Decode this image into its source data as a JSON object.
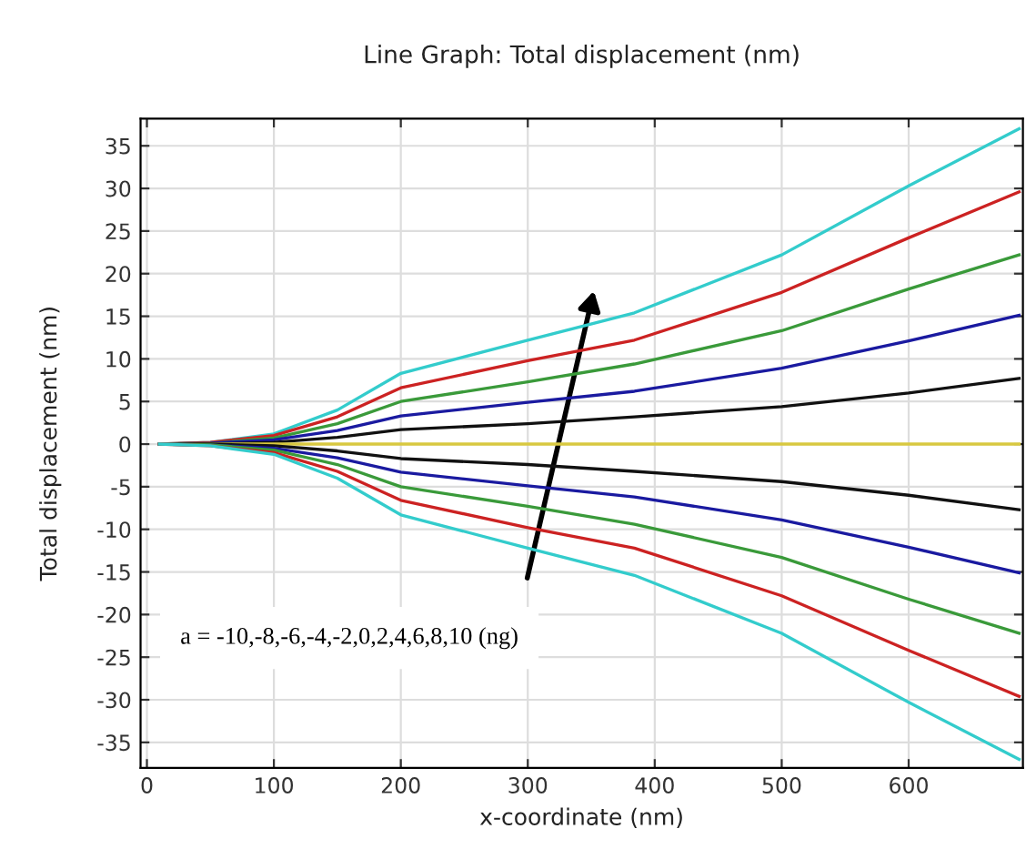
{
  "chart_data": {
    "type": "line",
    "title": "Line Graph: Total displacement (nm)",
    "xlabel": "x-coordinate (nm)",
    "ylabel": "Total displacement (nm)",
    "x": [
      10,
      50,
      100,
      150,
      200,
      300,
      384,
      500,
      600,
      687
    ],
    "series": [
      {
        "color": "#33cccc",
        "values": [
          0,
          0.2,
          1.2,
          4,
          8.3,
          12.2,
          15.4,
          22.2,
          30.3,
          37
        ]
      },
      {
        "color": "#cc2222",
        "values": [
          0,
          0.2,
          1,
          3.2,
          6.6,
          9.8,
          12.2,
          17.8,
          24.2,
          29.6
        ]
      },
      {
        "color": "#3a9a3a",
        "values": [
          0,
          0.1,
          0.7,
          2.4,
          5,
          7.3,
          9.4,
          13.3,
          18.2,
          22.2
        ]
      },
      {
        "color": "#1a1aa0",
        "values": [
          0,
          0.1,
          0.5,
          1.6,
          3.3,
          4.9,
          6.2,
          8.9,
          12.1,
          15.1
        ]
      },
      {
        "color": "#111111",
        "values": [
          0,
          0,
          0.2,
          0.8,
          1.7,
          2.4,
          3.2,
          4.4,
          6,
          7.7
        ]
      },
      {
        "color": "#d8c840",
        "values": [
          0,
          0,
          0,
          0,
          0,
          0,
          0,
          0,
          0,
          0
        ]
      },
      {
        "color": "#111111",
        "values": [
          0,
          0,
          -0.2,
          -0.8,
          -1.7,
          -2.4,
          -3.2,
          -4.4,
          -6,
          -7.7
        ]
      },
      {
        "color": "#1a1aa0",
        "values": [
          0,
          -0.1,
          -0.5,
          -1.6,
          -3.3,
          -4.9,
          -6.2,
          -8.9,
          -12.1,
          -15.1
        ]
      },
      {
        "color": "#3a9a3a",
        "values": [
          0,
          -0.1,
          -0.7,
          -2.4,
          -5,
          -7.3,
          -9.4,
          -13.3,
          -18.2,
          -22.2
        ]
      },
      {
        "color": "#cc2222",
        "values": [
          0,
          -0.2,
          -1,
          -3.2,
          -6.6,
          -9.8,
          -12.2,
          -17.8,
          -24.2,
          -29.6
        ]
      },
      {
        "color": "#33cccc",
        "values": [
          0,
          -0.2,
          -1.2,
          -4,
          -8.3,
          -12.2,
          -15.4,
          -22.2,
          -30.3,
          -37
        ]
      }
    ],
    "xlim": [
      -5,
      690
    ],
    "ylim": [
      -38,
      38.2
    ],
    "xticks": [
      0,
      100,
      200,
      300,
      400,
      500,
      600
    ],
    "yticks": [
      -35,
      -30,
      -25,
      -20,
      -15,
      -10,
      -5,
      0,
      5,
      10,
      15,
      20,
      25,
      30,
      35
    ],
    "grid": true,
    "marker": "none",
    "line_style": "solid",
    "annotations": [
      "a = -10,-8,-6,-4,-2,0,2,4,6,8,10 (ng)"
    ]
  }
}
